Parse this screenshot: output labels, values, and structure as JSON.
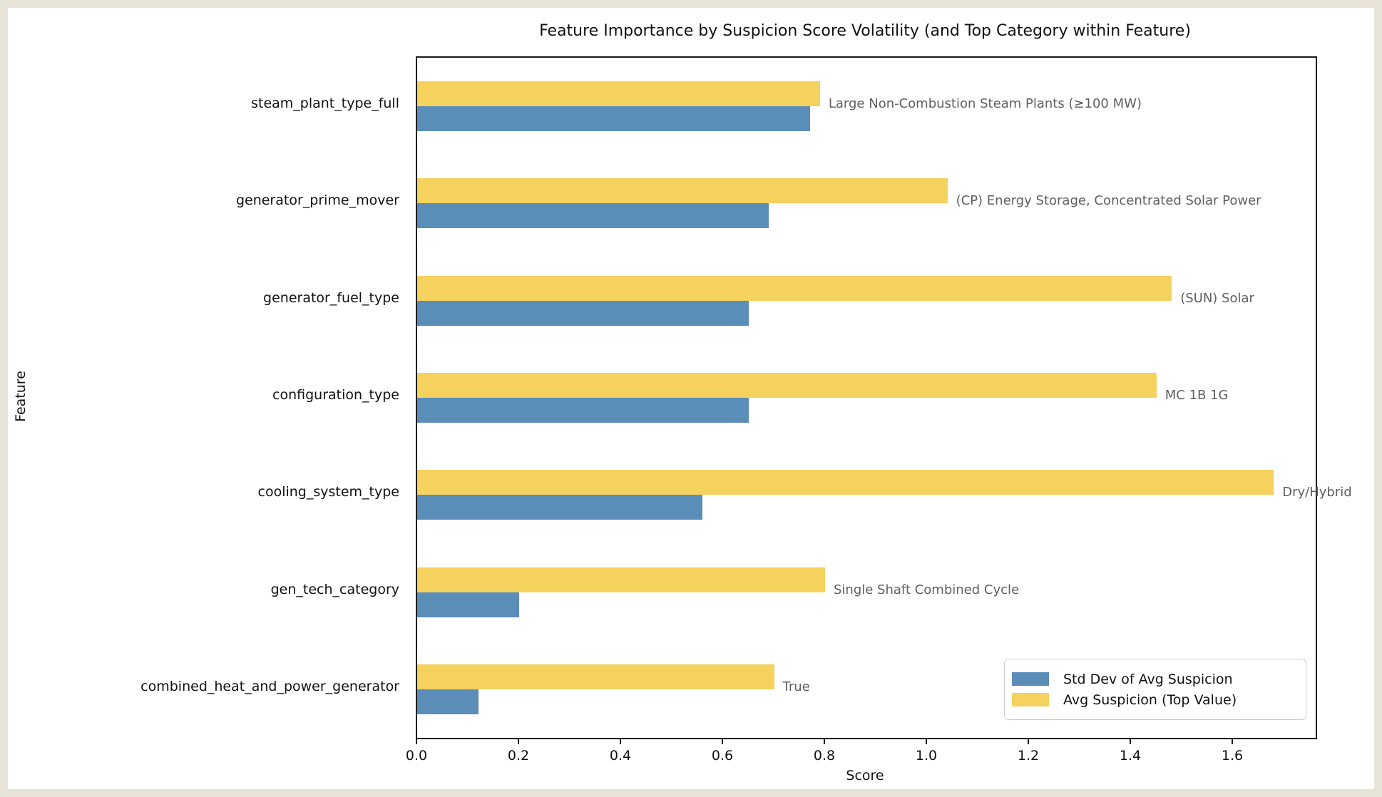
{
  "title": "Feature Importance by Suspicion Score Volatility (and Top Category within Feature)",
  "colors": {
    "std": "#5b8db9",
    "avg": "#f5d15d",
    "annotation": "#5f5f5f",
    "frame": "#e8e4d8",
    "spine": "#1a1a1a"
  },
  "legend": {
    "items": [
      {
        "label": "Std Dev of Avg Suspicion",
        "color_key": "std"
      },
      {
        "label": "Avg Suspicion (Top Value)",
        "color_key": "avg"
      }
    ]
  },
  "chart_data": {
    "type": "bar",
    "orientation": "horizontal",
    "title": "Feature Importance by Suspicion Score Volatility (and Top Category within Feature)",
    "xlabel": "Score",
    "ylabel": "Feature",
    "xlim": [
      0,
      1.7622
    ],
    "x_ticks": [
      0.0,
      0.2,
      0.4,
      0.6,
      0.8,
      1.0,
      1.2,
      1.4,
      1.6
    ],
    "grid": false,
    "legend_position": "lower right",
    "categories": [
      "steam_plant_type_full",
      "generator_prime_mover",
      "generator_fuel_type",
      "configuration_type",
      "cooling_system_type",
      "gen_tech_category",
      "combined_heat_and_power_generator"
    ],
    "series": [
      {
        "name": "Std Dev of Avg Suspicion",
        "color_key": "std",
        "values": [
          0.77,
          0.69,
          0.65,
          0.65,
          0.56,
          0.2,
          0.12
        ]
      },
      {
        "name": "Avg Suspicion (Top Value)",
        "color_key": "avg",
        "values": [
          0.79,
          1.04,
          1.48,
          1.45,
          1.68,
          0.8,
          0.7
        ]
      }
    ],
    "annotations": [
      "Large Non-Combustion Steam Plants (≥100 MW)",
      "(CP) Energy Storage, Concentrated Solar Power",
      "(SUN) Solar",
      "MC 1B 1G",
      "Dry/Hybrid",
      "Single Shaft Combined Cycle",
      "True"
    ]
  }
}
